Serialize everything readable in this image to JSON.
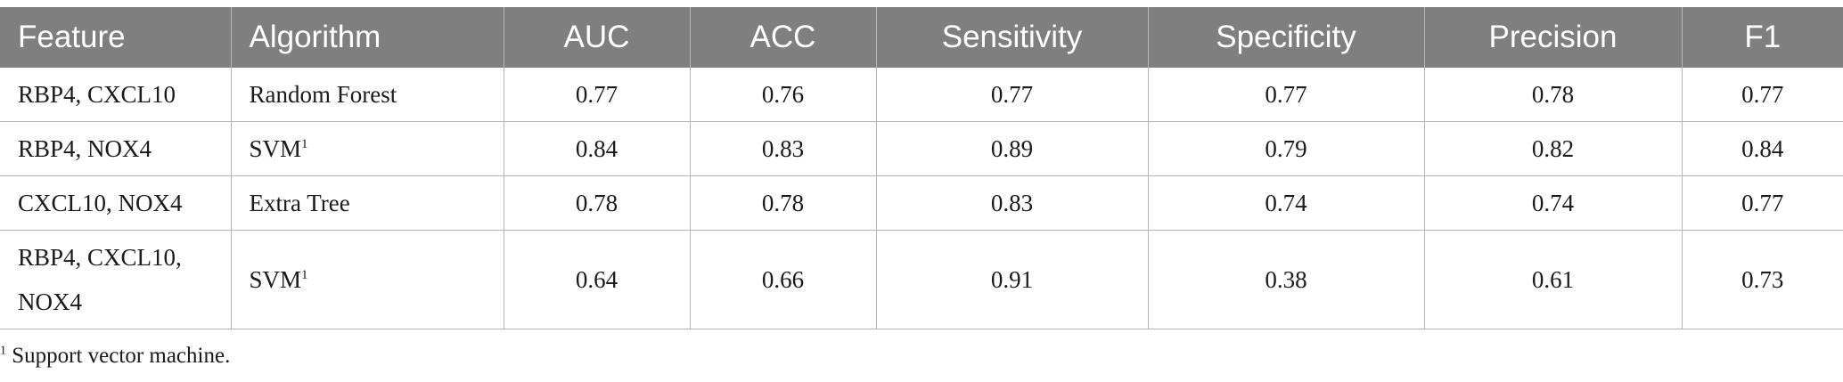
{
  "table": {
    "headers": [
      "Feature",
      "Algorithm",
      "AUC",
      "ACC",
      "Sensitivity",
      "Specificity",
      "Precision",
      "F1"
    ],
    "rows": [
      {
        "feature": "RBP4, CXCL10",
        "algorithm": "Random Forest",
        "algorithm_sup": "",
        "auc": "0.77",
        "acc": "0.76",
        "sensitivity": "0.77",
        "specificity": "0.77",
        "precision": "0.78",
        "f1": "0.77"
      },
      {
        "feature": "RBP4, NOX4",
        "algorithm": "SVM",
        "algorithm_sup": "1",
        "auc": "0.84",
        "acc": "0.83",
        "sensitivity": "0.89",
        "specificity": "0.79",
        "precision": "0.82",
        "f1": "0.84"
      },
      {
        "feature": "CXCL10, NOX4",
        "algorithm": "Extra Tree",
        "algorithm_sup": "",
        "auc": "0.78",
        "acc": "0.78",
        "sensitivity": "0.83",
        "specificity": "0.74",
        "precision": "0.74",
        "f1": "0.77"
      },
      {
        "feature_line1": "RBP4, CXCL10,",
        "feature_line2": "NOX4",
        "algorithm": "SVM",
        "algorithm_sup": "1",
        "auc": "0.64",
        "acc": "0.66",
        "sensitivity": "0.91",
        "specificity": "0.38",
        "precision": "0.61",
        "f1": "0.73"
      }
    ]
  },
  "footnote": {
    "marker": "1",
    "text": " Support vector machine."
  }
}
